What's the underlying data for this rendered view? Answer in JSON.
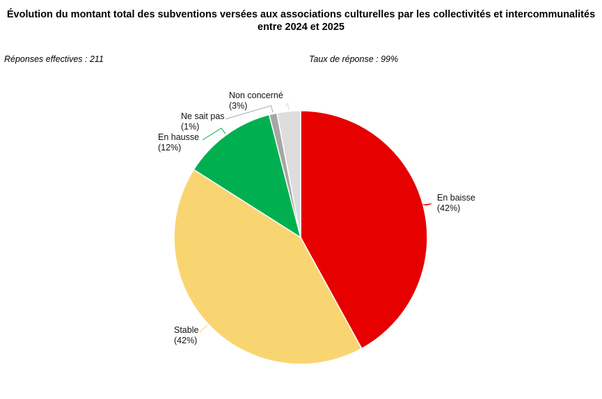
{
  "header": {
    "title_line1": "Évolution du montant total des subventions versées aux associations culturelles par les collectivités et intercommunalités",
    "title_line2": "entre 2024 et 2025",
    "responses": "Réponses effectives : 211",
    "response_rate": "Taux de réponse : 99%"
  },
  "chart_data": {
    "type": "pie",
    "title": "Évolution du montant total des subventions versées aux associations culturelles par les collectivités et intercommunalités entre 2024 et 2025",
    "slices": [
      {
        "label": "En baisse",
        "value": 42,
        "value_label": "(42%)",
        "color": "#e60000"
      },
      {
        "label": "Stable",
        "value": 42,
        "value_label": "(42%)",
        "color": "#f9d572"
      },
      {
        "label": "En hausse",
        "value": 12,
        "value_label": "(12%)",
        "color": "#00b050"
      },
      {
        "label": "Ne sait pas",
        "value": 1,
        "value_label": "(1%)",
        "color": "#a6a6a6"
      },
      {
        "label": "Non concerné",
        "value": 3,
        "value_label": "(3%)",
        "color": "#dddddd"
      }
    ]
  }
}
